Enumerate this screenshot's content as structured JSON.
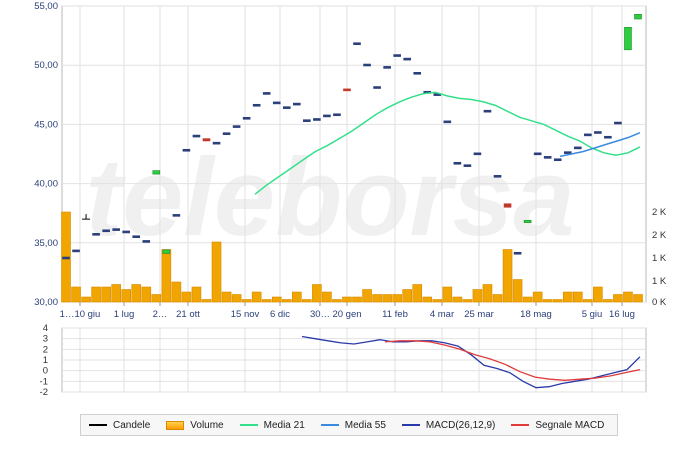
{
  "chart_data": [
    {
      "type": "candlestick",
      "price_axis": {
        "ylim": [
          30,
          55
        ],
        "ticks": [
          "55,00",
          "50,00",
          "45,00",
          "40,00",
          "35,00",
          "30,00"
        ]
      },
      "volume_axis": {
        "ticks": [
          "2 K",
          "2 K",
          "1 K",
          "1 K",
          "0 K"
        ]
      },
      "x_tick_labels": [
        "1…10 giu",
        "1 lug",
        "2…",
        "21 ott",
        "15 nov",
        "6 dic",
        "30…",
        "20 gen",
        "11 feb",
        "4 mar",
        "25 mar",
        "18 mag",
        "5 giu",
        "16 lug"
      ],
      "candles": [
        {
          "o": 33.8,
          "c": 33.7,
          "color": "#2b3f7a"
        },
        {
          "o": 34.3,
          "c": 34.4,
          "color": "#2b3f7a"
        },
        {
          "o": 37.0,
          "c": 37.0,
          "color": "#000000"
        },
        {
          "o": 35.8,
          "c": 35.8,
          "color": "#2b3f7a"
        },
        {
          "o": 36.1,
          "c": 36.1,
          "color": "#2b3f7a"
        },
        {
          "o": 36.2,
          "c": 36.2,
          "color": "#2b3f7a"
        },
        {
          "o": 36.0,
          "c": 36.0,
          "color": "#2b3f7a"
        },
        {
          "o": 35.6,
          "c": 35.6,
          "color": "#2b3f7a"
        },
        {
          "o": 35.2,
          "c": 35.2,
          "color": "#2b3f7a"
        },
        {
          "o": 41.1,
          "c": 40.8,
          "color": "#2ecc40"
        },
        {
          "o": 34.4,
          "c": 34.1,
          "color": "#2ecc40"
        },
        {
          "o": 37.4,
          "c": 37.4,
          "color": "#2b3f7a"
        },
        {
          "o": 42.9,
          "c": 42.9,
          "color": "#2b3f7a"
        },
        {
          "o": 44.1,
          "c": 44.1,
          "color": "#2b3f7a"
        },
        {
          "o": 43.6,
          "c": 43.8,
          "color": "#c0392b"
        },
        {
          "o": 43.5,
          "c": 43.5,
          "color": "#2b3f7a"
        },
        {
          "o": 44.3,
          "c": 44.3,
          "color": "#2b3f7a"
        },
        {
          "o": 44.9,
          "c": 44.9,
          "color": "#2b3f7a"
        },
        {
          "o": 45.6,
          "c": 45.6,
          "color": "#2b3f7a"
        },
        {
          "o": 46.7,
          "c": 46.7,
          "color": "#2b3f7a"
        },
        {
          "o": 47.7,
          "c": 47.7,
          "color": "#2b3f7a"
        },
        {
          "o": 46.9,
          "c": 46.9,
          "color": "#2b3f7a"
        },
        {
          "o": 46.5,
          "c": 46.5,
          "color": "#2b3f7a"
        },
        {
          "o": 46.8,
          "c": 46.8,
          "color": "#2b3f7a"
        },
        {
          "o": 45.4,
          "c": 45.4,
          "color": "#2b3f7a"
        },
        {
          "o": 45.5,
          "c": 45.5,
          "color": "#2b3f7a"
        },
        {
          "o": 45.8,
          "c": 45.8,
          "color": "#2b3f7a"
        },
        {
          "o": 45.9,
          "c": 45.9,
          "color": "#2b3f7a"
        },
        {
          "o": 47.9,
          "c": 48.0,
          "color": "#c0392b"
        },
        {
          "o": 51.9,
          "c": 51.9,
          "color": "#2b3f7a"
        },
        {
          "o": 50.1,
          "c": 50.1,
          "color": "#2b3f7a"
        },
        {
          "o": 48.2,
          "c": 48.2,
          "color": "#2b3f7a"
        },
        {
          "o": 49.9,
          "c": 49.9,
          "color": "#2b3f7a"
        },
        {
          "o": 50.9,
          "c": 50.9,
          "color": "#2b3f7a"
        },
        {
          "o": 50.6,
          "c": 50.6,
          "color": "#2b3f7a"
        },
        {
          "o": 49.4,
          "c": 49.4,
          "color": "#2b3f7a"
        },
        {
          "o": 47.8,
          "c": 47.8,
          "color": "#2b3f7a"
        },
        {
          "o": 47.6,
          "c": 47.6,
          "color": "#2b3f7a"
        },
        {
          "o": 45.3,
          "c": 45.3,
          "color": "#2b3f7a"
        },
        {
          "o": 41.8,
          "c": 41.8,
          "color": "#2b3f7a"
        },
        {
          "o": 41.6,
          "c": 41.6,
          "color": "#2b3f7a"
        },
        {
          "o": 42.6,
          "c": 42.6,
          "color": "#2b3f7a"
        },
        {
          "o": 46.2,
          "c": 46.2,
          "color": "#2b3f7a"
        },
        {
          "o": 40.7,
          "c": 40.7,
          "color": "#2b3f7a"
        },
        {
          "o": 38.0,
          "c": 38.3,
          "color": "#c0392b"
        },
        {
          "o": 34.2,
          "c": 34.2,
          "color": "#2b3f7a"
        },
        {
          "o": 36.9,
          "c": 36.7,
          "color": "#2ecc40"
        },
        {
          "o": 42.6,
          "c": 42.6,
          "color": "#2b3f7a"
        },
        {
          "o": 42.3,
          "c": 42.3,
          "color": "#2b3f7a"
        },
        {
          "o": 42.1,
          "c": 42.1,
          "color": "#2b3f7a"
        },
        {
          "o": 42.7,
          "c": 42.7,
          "color": "#2b3f7a"
        },
        {
          "o": 43.1,
          "c": 43.1,
          "color": "#2b3f7a"
        },
        {
          "o": 44.2,
          "c": 44.2,
          "color": "#2b3f7a"
        },
        {
          "o": 44.4,
          "c": 44.4,
          "color": "#2b3f7a"
        },
        {
          "o": 44.0,
          "c": 44.0,
          "color": "#2b3f7a"
        },
        {
          "o": 45.2,
          "c": 45.2,
          "color": "#2b3f7a"
        },
        {
          "o": 51.3,
          "c": 53.2,
          "color": "#2ecc40"
        },
        {
          "o": 53.9,
          "c": 54.3,
          "color": "#2ecc40"
        }
      ],
      "volumes": [
        1.8,
        0.3,
        0.1,
        0.3,
        0.3,
        0.35,
        0.25,
        0.35,
        0.3,
        0.15,
        1.05,
        0.4,
        0.2,
        0.3,
        0.05,
        1.2,
        0.2,
        0.15,
        0.05,
        0.2,
        0.05,
        0.1,
        0.05,
        0.2,
        0.05,
        0.35,
        0.2,
        0.05,
        0.1,
        0.1,
        0.25,
        0.15,
        0.15,
        0.15,
        0.25,
        0.35,
        0.1,
        0.05,
        0.3,
        0.1,
        0.05,
        0.25,
        0.35,
        0.15,
        1.05,
        0.45,
        0.1,
        0.2,
        0.05,
        0.05,
        0.2,
        0.2,
        0.05,
        0.3,
        0.05,
        0.15,
        0.2,
        0.15
      ],
      "ma21": [
        39.1,
        39.9,
        40.6,
        41.3,
        42.0,
        42.7,
        43.2,
        43.8,
        44.4,
        45.1,
        45.8,
        46.4,
        46.9,
        47.3,
        47.6,
        47.7,
        47.4,
        47.2,
        47.1,
        46.9,
        46.6,
        46.1,
        45.6,
        45.3,
        45.0,
        44.5,
        44.0,
        43.6,
        43.0,
        42.6,
        42.4,
        42.6,
        43.1
      ],
      "ma55": [
        42.3,
        42.5,
        42.7,
        43.0,
        43.3,
        43.6,
        43.9,
        44.3
      ],
      "macd_axis": {
        "ylim": [
          -2,
          4
        ],
        "ticks": [
          "4",
          "3",
          "2",
          "1",
          "0",
          "-1",
          "-2"
        ]
      },
      "macd": [
        3.2,
        3.0,
        2.8,
        2.6,
        2.5,
        2.7,
        2.9,
        2.7,
        2.7,
        2.8,
        2.8,
        2.6,
        2.3,
        1.5,
        0.5,
        0.2,
        -0.2,
        -1.0,
        -1.6,
        -1.5,
        -1.2,
        -1.0,
        -0.8,
        -0.5,
        -0.2,
        0.1,
        1.3
      ],
      "signal": [
        2.7,
        2.8,
        2.8,
        2.7,
        2.4,
        2.0,
        1.5,
        1.1,
        0.6,
        -0.1,
        -0.6,
        -0.8,
        -0.9,
        -0.8,
        -0.7,
        -0.5,
        -0.2,
        0.1
      ]
    }
  ],
  "colors": {
    "ma21": "#33e08a",
    "ma55": "#3a8be0",
    "macd": "#2a3aa8",
    "signal": "#e03a3a",
    "volume": "#f0a500",
    "grid": "#e2e2e2"
  },
  "watermark": "teleborsa",
  "legend": [
    {
      "label": "Candele",
      "kind": "line",
      "color": "#000000"
    },
    {
      "label": "Volume",
      "kind": "bar",
      "color": "#f0a500"
    },
    {
      "label": "Media 21",
      "kind": "line",
      "color": "#33e08a"
    },
    {
      "label": "Media 55",
      "kind": "line",
      "color": "#3a8be0"
    },
    {
      "label": "MACD(26,12,9)",
      "kind": "line",
      "color": "#2a3aa8"
    },
    {
      "label": "Segnale MACD",
      "kind": "line",
      "color": "#e03a3a"
    }
  ]
}
